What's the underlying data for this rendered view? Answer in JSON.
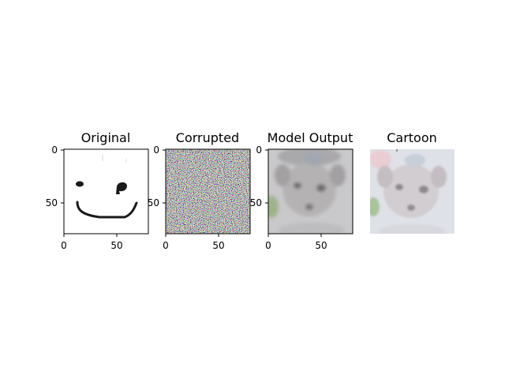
{
  "figure": {
    "panels": [
      {
        "id": "original",
        "title": "Original",
        "axes_visible": true,
        "xticks": [
          "0",
          "50"
        ],
        "yticks": [
          "0",
          "50"
        ],
        "image_description_icon": "smiley-sketch-icon"
      },
      {
        "id": "corrupted",
        "title": "Corrupted",
        "axes_visible": true,
        "xticks": [
          "0",
          "50"
        ],
        "yticks": [
          "0",
          "50"
        ],
        "image_description_icon": "noise-image-icon"
      },
      {
        "id": "model-output",
        "title": "Model Output",
        "axes_visible": true,
        "xticks": [
          "0",
          "50"
        ],
        "yticks": [
          "0",
          "50"
        ],
        "image_description_icon": "blurry-dog-icon"
      },
      {
        "id": "cartoon",
        "title": "Cartoon",
        "axes_visible": false,
        "xticks": [],
        "yticks": [],
        "image_description_icon": "pastel-dog-icon"
      }
    ],
    "image_extent": [
      0,
      80
    ],
    "colors": {
      "line_dark": "#1a1a1a",
      "face_gray": "#b7b4b4",
      "bg_gray": "#c8c8cb",
      "cartoon_bg": "#dfe1e8"
    }
  }
}
